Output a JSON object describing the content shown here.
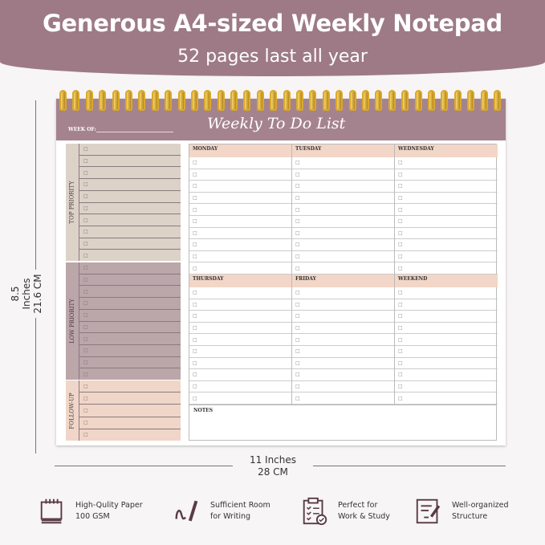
{
  "banner": {
    "title": "Generous A4-sized Weekly Notepad",
    "subtitle": "52 pages last all year"
  },
  "notepad": {
    "week_of_label": "WEEK OF:",
    "title": "Weekly To Do List",
    "checkbox_glyph": "□",
    "sections": [
      {
        "label": "TOP PRIORITY",
        "color": "#ddd2c8"
      },
      {
        "label": "LOW PRIORITY",
        "color": "#bba6aa"
      },
      {
        "label": "FOLLOW-UP",
        "color": "#f0d6c8"
      }
    ],
    "days": [
      "MONDAY",
      "TUESDAY",
      "WEDNESDAY",
      "THURSDAY",
      "FRIDAY",
      "WEEKEND"
    ],
    "notes_label": "NOTES"
  },
  "dimensions": {
    "height_in": "8.5 Inches",
    "height_cm": "21.6 CM",
    "width_in": "11 Inches",
    "width_cm": "28 CM"
  },
  "features": [
    {
      "icon": "notepad-icon",
      "line1": "High-Qulity Paper",
      "line2": "100 GSM"
    },
    {
      "icon": "pen-writing-icon",
      "line1": "Sufficient Room",
      "line2": "for Writing"
    },
    {
      "icon": "clipboard-checklist-icon",
      "line1": "Perfect for",
      "line2": "Work & Study"
    },
    {
      "icon": "document-pen-icon",
      "line1": "Well-organized",
      "line2": "Structure"
    }
  ],
  "colors": {
    "brand": "#9d7a86",
    "ring": "#d9a92a",
    "day_header": "#f2d6c7"
  }
}
